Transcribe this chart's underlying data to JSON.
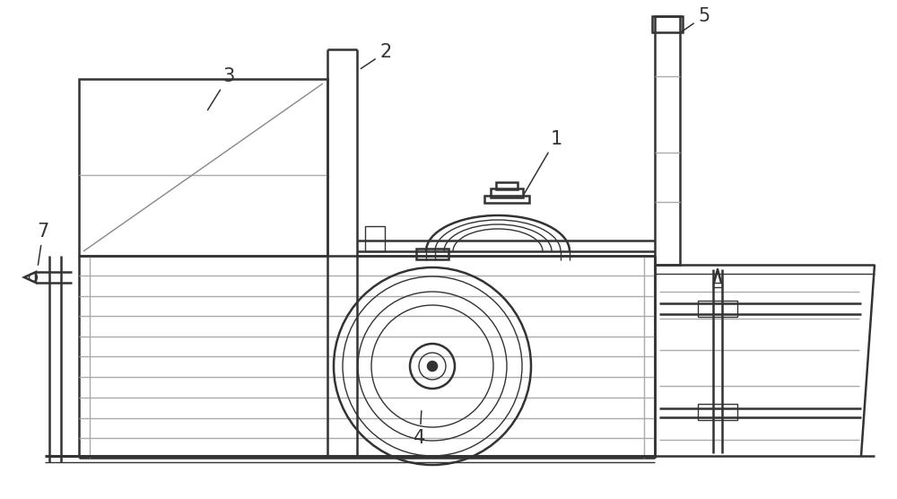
{
  "bg_color": "#ffffff",
  "lc": "#333333",
  "lc_thin": "#555555",
  "figsize": [
    10.0,
    5.56
  ],
  "dpi": 100,
  "label_fs": 15
}
